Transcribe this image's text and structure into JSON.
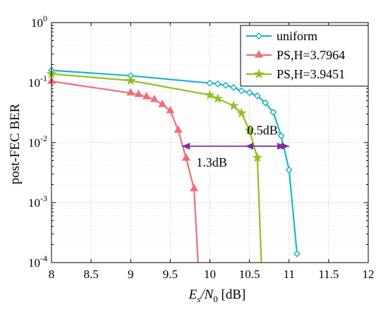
{
  "chart_data": {
    "type": "line",
    "x_scale": "linear",
    "y_scale": "log",
    "xlim": [
      8,
      12
    ],
    "ylim": [
      0.0001,
      1
    ],
    "grid": true,
    "xlabel_main": "E",
    "xlabel_sub": "s",
    "xlabel_slash": "/N",
    "xlabel_sub2": "0",
    "xlabel_unit": " [dB]",
    "ylabel": "post-FEC BER",
    "x_ticks": [
      "8",
      "8.5",
      "9",
      "9.5",
      "10",
      "10.5",
      "11",
      "11.5",
      "12"
    ],
    "y_ticks": [
      {
        "base": "10",
        "exp": "0"
      },
      {
        "base": "10",
        "exp": "-1"
      },
      {
        "base": "10",
        "exp": "-2"
      },
      {
        "base": "10",
        "exp": "-3"
      },
      {
        "base": "10",
        "exp": "-4"
      }
    ],
    "legend_position": "top-right",
    "series": [
      {
        "name": "uniform",
        "color": "#1fb5c9",
        "marker": "diamond",
        "x": [
          8,
          9,
          10,
          10.1,
          10.2,
          10.3,
          10.4,
          10.5,
          10.6,
          10.7,
          10.8,
          10.9,
          11,
          11.1
        ],
        "y": [
          0.16,
          0.13,
          0.098,
          0.095,
          0.09,
          0.083,
          0.073,
          0.068,
          0.06,
          0.046,
          0.032,
          0.013,
          0.0035,
          0.00014
        ]
      },
      {
        "name": "PS,H=3.7964",
        "color": "#f06e7a",
        "marker": "triangle",
        "x": [
          8,
          9,
          9.1,
          9.2,
          9.3,
          9.4,
          9.5,
          9.6,
          9.7,
          9.8,
          9.85
        ],
        "y": [
          0.105,
          0.067,
          0.063,
          0.058,
          0.052,
          0.043,
          0.034,
          0.016,
          0.0055,
          0.0017,
          0.0001
        ]
      },
      {
        "name": "PS,H=3.9451",
        "color": "#93c01f",
        "marker": "star",
        "x": [
          8,
          9,
          10,
          10.1,
          10.3,
          10.4,
          10.5,
          10.6,
          10.65
        ],
        "y": [
          0.14,
          0.108,
          0.062,
          0.054,
          0.041,
          0.031,
          0.016,
          0.0056,
          0.0001
        ]
      }
    ],
    "annotations": [
      {
        "text": "0.5dB",
        "x_from": 10.45,
        "x_to": 11.0,
        "y": 0.0087,
        "text_x": 10.47,
        "text_y": 0.016
      },
      {
        "text": "1.3dB",
        "x_from": 9.65,
        "x_to": 10.95,
        "y": 0.0087,
        "text_x": 9.83,
        "text_y": 0.0047
      }
    ],
    "arrow_color": "#7a2e9c"
  }
}
